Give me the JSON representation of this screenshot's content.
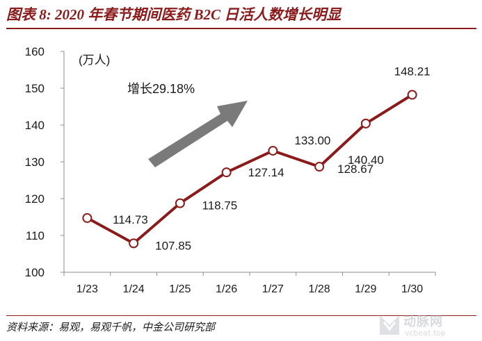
{
  "figure": {
    "title": "图表 8: 2020 年春节期间医药 B2C 日活人数增长明显",
    "source": "资料来源：易观，易观千帆，中金公司研究部",
    "watermark_text": "动脉网",
    "watermark_url": "vcbeat.top"
  },
  "colors": {
    "line": "#8b1a1a",
    "marker_fill": "#ffffff",
    "arrow": "#7a7a7a",
    "axis": "#8c8c8c",
    "title": "#8b1a1a"
  },
  "chart_data": {
    "type": "line",
    "title": "",
    "xlabel": "",
    "ylabel": "",
    "unit_label": "(万人)",
    "annotation": "增长29.18%",
    "categories": [
      "1/23",
      "1/24",
      "1/25",
      "1/26",
      "1/27",
      "1/28",
      "1/29",
      "1/30"
    ],
    "values": [
      114.73,
      107.85,
      118.75,
      127.14,
      133.0,
      128.67,
      140.4,
      148.21
    ],
    "value_labels": [
      "114.73",
      "107.85",
      "118.75",
      "127.14",
      "133.00",
      "128.67",
      "140.40",
      "148.21"
    ],
    "ylim": [
      100,
      160
    ],
    "yticks": [
      "100",
      "110",
      "120",
      "130",
      "140",
      "150",
      "160"
    ],
    "grid": false,
    "legend": "none"
  }
}
